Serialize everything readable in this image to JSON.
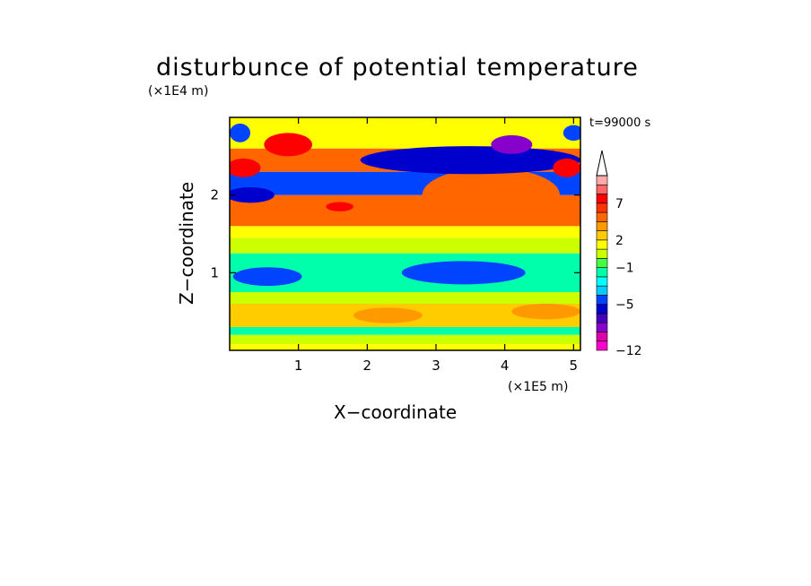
{
  "chart_data": {
    "type": "heatmap",
    "title": "disturbunce of potential temperature",
    "time_label": "t=99000 s",
    "xlabel": "X−coordinate",
    "ylabel": "Z−coordinate",
    "x_unit_label": "(×1E5 m)",
    "y_unit_label": "(×1E4 m)",
    "xlim": [
      0,
      5.1
    ],
    "ylim": [
      0,
      3.0
    ],
    "x_ticks": [
      1,
      2,
      3,
      4,
      5
    ],
    "x_tick_labels": [
      "1",
      "2",
      "3",
      "4",
      "5"
    ],
    "y_ticks": [
      1,
      2
    ],
    "y_tick_labels": [
      "1",
      "2"
    ],
    "colorbar": {
      "levels": [
        -12,
        -10,
        -8,
        -7,
        -6,
        -5,
        -4,
        -3,
        -2,
        -1,
        0,
        1,
        2,
        3,
        4,
        5,
        7,
        8,
        9
      ],
      "colors": [
        "#ff00cc",
        "#dd00aa",
        "#8800cc",
        "#4400bb",
        "#0000cc",
        "#0044ff",
        "#00ccff",
        "#00ffff",
        "#00ffaa",
        "#44ff44",
        "#ccff00",
        "#ffff00",
        "#ffcc00",
        "#ff9900",
        "#ff6600",
        "#ff3300",
        "#ff0000",
        "#ff6666",
        "#ffaaaa"
      ],
      "tick_values": [
        -12,
        -5,
        -1,
        2,
        7
      ],
      "tick_labels": [
        "−12",
        "−5",
        "−1",
        "2",
        "7"
      ],
      "extend": "max"
    },
    "bands": [
      {
        "z_min": 0.0,
        "z_max": 0.08,
        "value": 1
      },
      {
        "z_min": 0.08,
        "z_max": 0.2,
        "value": 0
      },
      {
        "z_min": 0.2,
        "z_max": 0.3,
        "value": -2
      },
      {
        "z_min": 0.3,
        "z_max": 0.6,
        "value": 2
      },
      {
        "z_min": 0.6,
        "z_max": 0.75,
        "value": 0
      },
      {
        "z_min": 0.75,
        "z_max": 1.25,
        "value": -2
      },
      {
        "z_min": 1.25,
        "z_max": 1.45,
        "value": 0
      },
      {
        "z_min": 1.45,
        "z_max": 1.6,
        "value": 1
      },
      {
        "z_min": 1.6,
        "z_max": 2.0,
        "value": 4
      },
      {
        "z_min": 2.0,
        "z_max": 2.3,
        "value": -5
      },
      {
        "z_min": 2.3,
        "z_max": 2.6,
        "value": 4
      },
      {
        "z_min": 2.6,
        "z_max": 3.0,
        "value": 1
      }
    ],
    "features": [
      {
        "x": 0.55,
        "z": 0.95,
        "rx": 0.5,
        "rz": 0.12,
        "value": -5
      },
      {
        "x": 3.4,
        "z": 1.0,
        "rx": 0.9,
        "rz": 0.15,
        "value": -5
      },
      {
        "x": 3.8,
        "z": 2.0,
        "rx": 1.0,
        "rz": 0.35,
        "value": 4
      },
      {
        "x": 3.5,
        "z": 2.45,
        "rx": 1.6,
        "rz": 0.18,
        "value": -6
      },
      {
        "x": 4.1,
        "z": 2.65,
        "rx": 0.3,
        "rz": 0.12,
        "value": -8
      },
      {
        "x": 0.85,
        "z": 2.65,
        "rx": 0.35,
        "rz": 0.15,
        "value": 7
      },
      {
        "x": 0.2,
        "z": 2.35,
        "rx": 0.25,
        "rz": 0.12,
        "value": 7
      },
      {
        "x": 4.9,
        "z": 2.35,
        "rx": 0.2,
        "rz": 0.12,
        "value": 7
      },
      {
        "x": 1.6,
        "z": 1.85,
        "rx": 0.2,
        "rz": 0.06,
        "value": 7
      },
      {
        "x": 0.3,
        "z": 2.0,
        "rx": 0.35,
        "rz": 0.1,
        "value": -6
      },
      {
        "x": 0.15,
        "z": 2.8,
        "rx": 0.15,
        "rz": 0.12,
        "value": -5
      },
      {
        "x": 5.0,
        "z": 2.8,
        "rx": 0.15,
        "rz": 0.1,
        "value": -5
      },
      {
        "x": 2.3,
        "z": 0.45,
        "rx": 0.5,
        "rz": 0.1,
        "value": 3
      },
      {
        "x": 4.6,
        "z": 0.5,
        "rx": 0.5,
        "rz": 0.1,
        "value": 3
      }
    ]
  }
}
